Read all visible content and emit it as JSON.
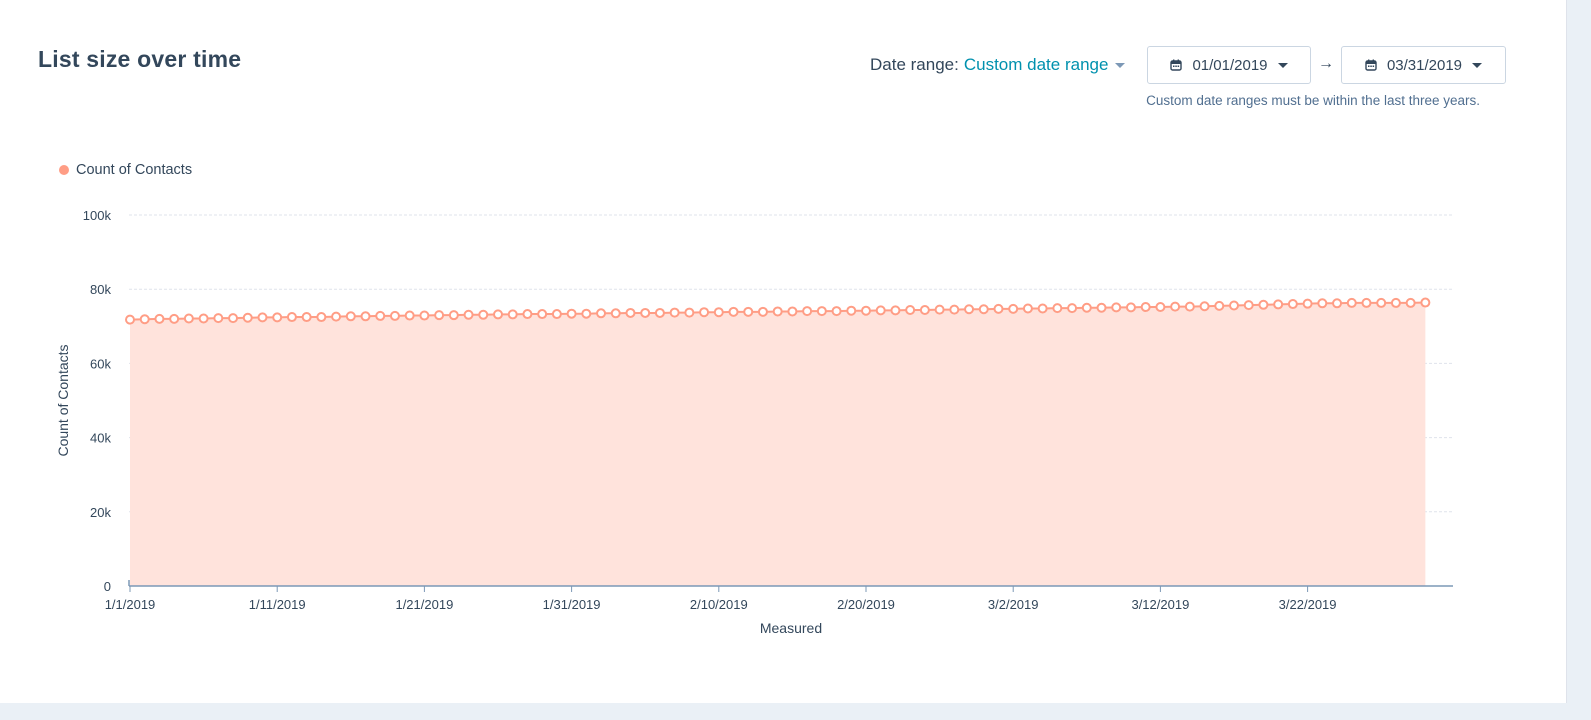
{
  "report": {
    "title": "List size over time",
    "date_range_label": "Date range:",
    "date_range_value": "Custom date range",
    "start_date": "01/01/2019",
    "end_date": "03/31/2019",
    "arrow": "→",
    "hint": "Custom date ranges must be within the last three years."
  },
  "legend": {
    "label": "Count of Contacts"
  },
  "colors": {
    "series": "#ff9d85",
    "area": "#ffe3dc",
    "link": "#0091ae",
    "text": "#33475b"
  },
  "chart_data": {
    "type": "area",
    "title": "",
    "xlabel": "Measured",
    "ylabel": "Count of Contacts",
    "ylim": [
      0,
      100000
    ],
    "y_ticks": [
      0,
      20000,
      40000,
      60000,
      80000,
      100000
    ],
    "y_tick_labels": [
      "0",
      "20k",
      "40k",
      "60k",
      "80k",
      "100k"
    ],
    "x_tick_labels": [
      "1/1/2019",
      "1/11/2019",
      "1/21/2019",
      "1/31/2019",
      "2/10/2019",
      "2/20/2019",
      "3/2/2019",
      "3/12/2019",
      "3/22/2019"
    ],
    "grid": true,
    "legend_position": "top-left",
    "series": [
      {
        "name": "Count of Contacts",
        "x_start": "1/1/2019",
        "x_end": "3/30/2019",
        "values": [
          71800,
          71900,
          72000,
          72000,
          72100,
          72100,
          72200,
          72200,
          72300,
          72400,
          72400,
          72500,
          72500,
          72500,
          72600,
          72700,
          72700,
          72800,
          72800,
          72900,
          72900,
          73000,
          73000,
          73100,
          73100,
          73200,
          73200,
          73300,
          73300,
          73300,
          73400,
          73400,
          73500,
          73500,
          73600,
          73600,
          73600,
          73700,
          73700,
          73800,
          73800,
          73900,
          73900,
          73900,
          74000,
          74000,
          74100,
          74100,
          74100,
          74200,
          74200,
          74300,
          74300,
          74400,
          74400,
          74500,
          74500,
          74600,
          74600,
          74700,
          74700,
          74800,
          74800,
          74900,
          74900,
          75000,
          75000,
          75100,
          75100,
          75200,
          75200,
          75300,
          75300,
          75400,
          75500,
          75600,
          75700,
          75800,
          75900,
          76000,
          76100,
          76200,
          76200,
          76300,
          76300,
          76300,
          76300,
          76300,
          76400
        ]
      }
    ]
  }
}
